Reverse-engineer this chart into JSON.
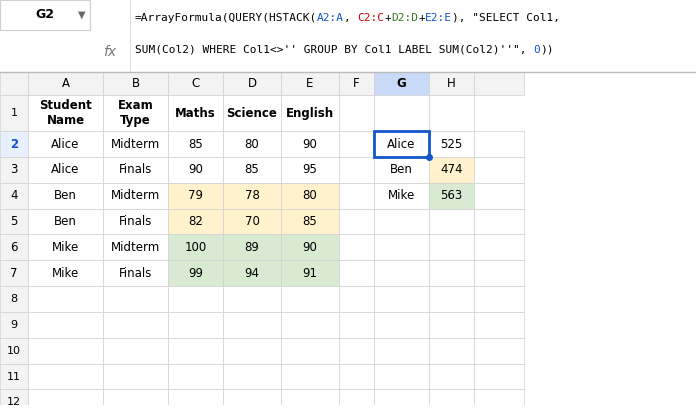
{
  "formula_bar_cell": "G2",
  "col_labels": [
    "",
    "A",
    "B",
    "C",
    "D",
    "E",
    "F",
    "G",
    "H",
    ""
  ],
  "header_row": [
    "Student\nName",
    "Exam\nType",
    "Maths",
    "Science",
    "English",
    "",
    "",
    ""
  ],
  "data_rows": [
    [
      "Alice",
      "Midterm",
      "85",
      "80",
      "90",
      "",
      "Alice",
      "525"
    ],
    [
      "Alice",
      "Finals",
      "90",
      "85",
      "95",
      "",
      "Ben",
      "474"
    ],
    [
      "Ben",
      "Midterm",
      "79",
      "78",
      "80",
      "",
      "Mike",
      "563"
    ],
    [
      "Ben",
      "Finals",
      "82",
      "70",
      "85",
      "",
      "",
      ""
    ],
    [
      "Mike",
      "Midterm",
      "100",
      "89",
      "90",
      "",
      "",
      ""
    ],
    [
      "Mike",
      "Finals",
      "99",
      "94",
      "91",
      "",
      "",
      ""
    ]
  ],
  "cde_colors": [
    "#FFFFFF",
    "#FFFFFF",
    "#FFF2CC",
    "#FFF2CC",
    "#D9EAD3",
    "#D9EAD3"
  ],
  "h_colors": [
    "#FFFFFF",
    "#FFF2CC",
    "#D9EAD3"
  ],
  "background_color": "#FFFFFF",
  "grid_color": "#D0D0D0",
  "col_header_bg": "#F3F3F3",
  "selected_row_bg": "#E8F0FD",
  "selected_col_bg": "#C9DAF8",
  "selected_border": "#1155CC",
  "formula_parts_line1": [
    [
      "=ArrayFormula(QUERY(HSTACK(",
      "black"
    ],
    [
      "A2:A",
      "#1155CC"
    ],
    [
      ", ",
      "black"
    ],
    [
      "C2:C",
      "#CC0000"
    ],
    [
      "+",
      "black"
    ],
    [
      "D2:D",
      "#38761D"
    ],
    [
      "+",
      "black"
    ],
    [
      "E2:E",
      "#1155CC"
    ],
    [
      "), \"SELECT Col1,",
      "black"
    ]
  ],
  "formula_parts_line2": [
    [
      "SUM(Col2) WHERE Col1<>'' GROUP BY Col1 LABEL SUM(Col2)''\", ",
      "black"
    ],
    [
      "0",
      "#1155CC"
    ],
    [
      "))",
      "black"
    ]
  ]
}
